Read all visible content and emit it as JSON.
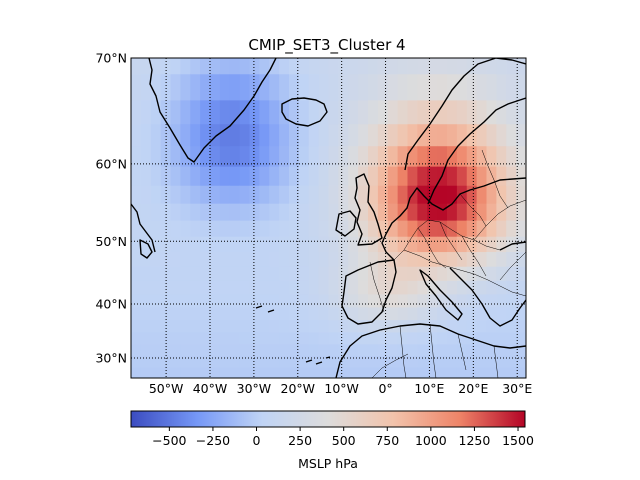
{
  "title": "CMIP_SET3_Cluster 4",
  "latitude_ticks": [
    "70°N",
    "60°N",
    "50°N",
    "40°N",
    "30°N"
  ],
  "longitude_ticks": [
    "50°W",
    "40°W",
    "30°W",
    "20°W",
    "10°W",
    "0°",
    "10°E",
    "20°E",
    "30°E"
  ],
  "colorbar": {
    "label": "MSLP hPa",
    "ticks": [
      "−500",
      "−250",
      "0",
      "250",
      "500",
      "750",
      "1000",
      "1250",
      "1500"
    ],
    "tick_values": [
      -500,
      -250,
      0,
      250,
      500,
      750,
      1000,
      1250,
      1500
    ],
    "range": [
      -720,
      1540
    ],
    "colormap": "coolwarm",
    "color_stops": [
      "#3b4cc0",
      "#7597f6",
      "#c0d4f5",
      "#dddcdc",
      "#f2c3ab",
      "#ee8468",
      "#b40426"
    ]
  },
  "chart_data": {
    "type": "heatmap",
    "title": "CMIP_SET3_Cluster 4",
    "variable": "MSLP hPa",
    "lon_range": [
      -58,
      32
    ],
    "lat_range": [
      26,
      70
    ],
    "lon_ticks": [
      -50,
      -40,
      -30,
      -20,
      -10,
      0,
      10,
      20,
      30
    ],
    "lat_ticks": [
      70,
      60,
      50,
      40,
      30
    ],
    "grid": "dotted",
    "anomaly_centers": [
      {
        "lon": 12,
        "lat": 56,
        "value": 1500
      },
      {
        "lon": -35,
        "lat": 63,
        "value": -600
      }
    ]
  }
}
